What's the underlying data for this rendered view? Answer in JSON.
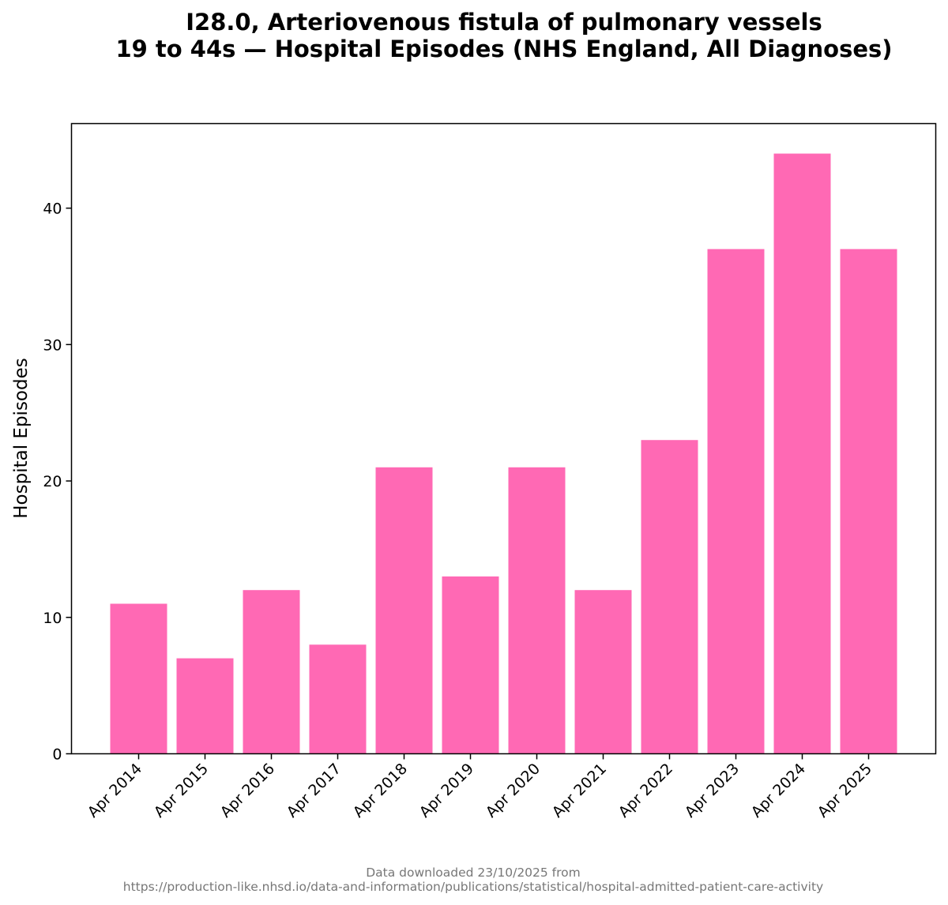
{
  "chart_data": {
    "type": "bar",
    "title_line1": "I28.0, Arteriovenous fistula of pulmonary vessels",
    "title_line2": "19 to 44s — Hospital Episodes (NHS England, All Diagnoses)",
    "xlabel": "",
    "ylabel": "Hospital Episodes",
    "categories": [
      "Apr 2014",
      "Apr 2015",
      "Apr 2016",
      "Apr 2017",
      "Apr 2018",
      "Apr 2019",
      "Apr 2020",
      "Apr 2021",
      "Apr 2022",
      "Apr 2023",
      "Apr 2024",
      "Apr 2025"
    ],
    "values": [
      11,
      7,
      12,
      8,
      21,
      13,
      21,
      12,
      23,
      37,
      44,
      37
    ],
    "ylim": [
      0,
      46.2
    ],
    "yticks": [
      0,
      10,
      20,
      30,
      40
    ],
    "bar_color": "#ff69b4",
    "grid": false
  },
  "footer": {
    "line1": "Data downloaded 23/10/2025 from",
    "line2": "https://production-like.nhsd.io/data-and-information/publications/statistical/hospital-admitted-patient-care-activity"
  }
}
